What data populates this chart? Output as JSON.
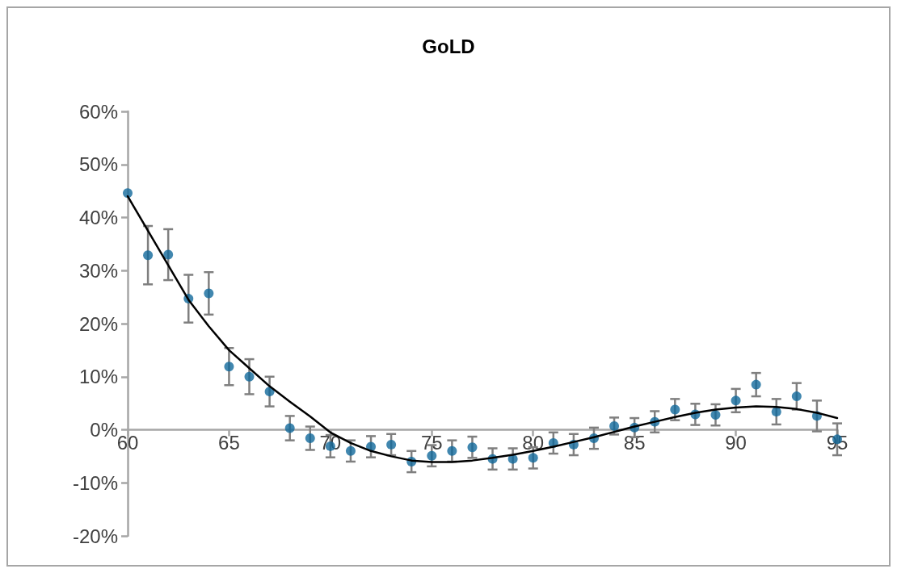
{
  "chart_data": {
    "type": "scatter",
    "title": "GoLD",
    "xlim": [
      60,
      95
    ],
    "xticks": [
      60,
      65,
      70,
      75,
      80,
      85,
      90,
      95
    ],
    "ylim": [
      -20,
      60
    ],
    "yticks": [
      {
        "value": -20,
        "label": "-20%"
      },
      {
        "value": -10,
        "label": "-10%"
      },
      {
        "value": 0,
        "label": "0%"
      },
      {
        "value": 10,
        "label": "10%"
      },
      {
        "value": 20,
        "label": "20%"
      },
      {
        "value": 30,
        "label": "30%"
      },
      {
        "value": 40,
        "label": "40%"
      },
      {
        "value": 50,
        "label": "50%"
      },
      {
        "value": 60,
        "label": "60%"
      }
    ],
    "grid": false,
    "marker": "circle",
    "series": [
      {
        "color": "#11699b",
        "x": [
          60,
          61,
          62,
          63,
          64,
          65,
          66,
          67,
          68,
          69,
          70,
          71,
          72,
          73,
          74,
          75,
          76,
          77,
          78,
          79,
          80,
          81,
          82,
          83,
          84,
          85,
          86,
          87,
          88,
          89,
          90,
          91,
          92,
          93,
          94,
          95
        ],
        "values": [
          44.6,
          32.9,
          33,
          24.7,
          25.7,
          11.9,
          10,
          7.2,
          0.3,
          -1.6,
          -3.1,
          -4,
          -3.2,
          -2.8,
          -6,
          -4.9,
          -4,
          -3.3,
          -5.5,
          -5.5,
          -5.3,
          -2.5,
          -2.8,
          -1.6,
          0.7,
          0.4,
          1.5,
          3.8,
          2.9,
          2.8,
          5.5,
          8.5,
          3.4,
          6.3,
          2.6,
          -1.8
        ],
        "errors": [
          null,
          5.5,
          4.8,
          4.5,
          4,
          3.5,
          3.3,
          2.8,
          2.3,
          2.2,
          2.1,
          2,
          2,
          2,
          2,
          2,
          2,
          2,
          2,
          2,
          2,
          2,
          2,
          2,
          1.6,
          1.8,
          2,
          2,
          2,
          2,
          2.2,
          2.2,
          2.4,
          2.5,
          2.9,
          3
        ]
      },
      {
        "type": "line",
        "color": "#000000",
        "marker": "none",
        "x": [
          60,
          61,
          62,
          63,
          64,
          65,
          66,
          67,
          68,
          69,
          70,
          71,
          72,
          73,
          74,
          75,
          76,
          77,
          78,
          79,
          80,
          81,
          82,
          83,
          84,
          85,
          86,
          87,
          88,
          89,
          90,
          91,
          92,
          93,
          94,
          95
        ],
        "values": [
          44,
          37.5,
          31,
          24.5,
          19.5,
          15,
          11.6,
          8.2,
          5.3,
          2.5,
          -0.5,
          -2.5,
          -4,
          -5,
          -5.8,
          -6.1,
          -6.1,
          -5.8,
          -5.3,
          -4.7,
          -4,
          -3.2,
          -2.3,
          -1.4,
          -0.4,
          0.6,
          1.5,
          2.4,
          3.2,
          3.8,
          4.2,
          4.4,
          4.3,
          3.9,
          3.2,
          2.2
        ]
      }
    ]
  }
}
